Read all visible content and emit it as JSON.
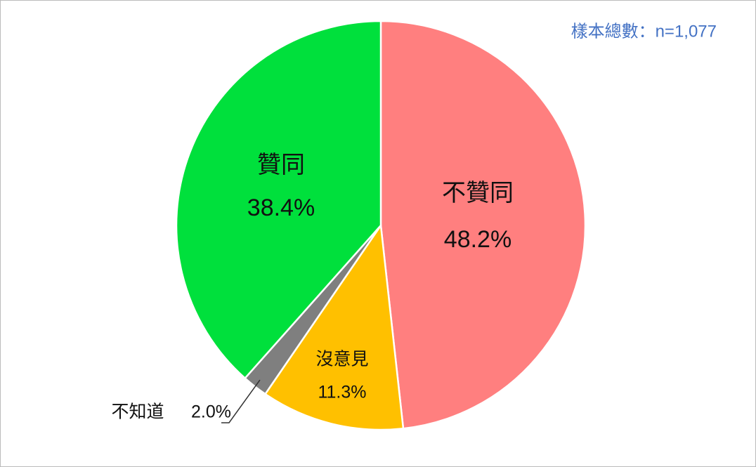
{
  "chart_data": {
    "type": "pie",
    "annotation": "樣本總數：n=1,077",
    "categories": [
      "不贊同",
      "沒意見",
      "不知道",
      "贊同"
    ],
    "values": [
      48.2,
      11.3,
      2.0,
      38.4
    ],
    "value_labels": [
      "48.2%",
      "11.3%",
      "2.0%",
      "38.4%"
    ],
    "colors": [
      "#ff7f7f",
      "#ffc000",
      "#7f7f7f",
      "#00e03c"
    ],
    "start_angle": 0,
    "direction": "clockwise"
  }
}
